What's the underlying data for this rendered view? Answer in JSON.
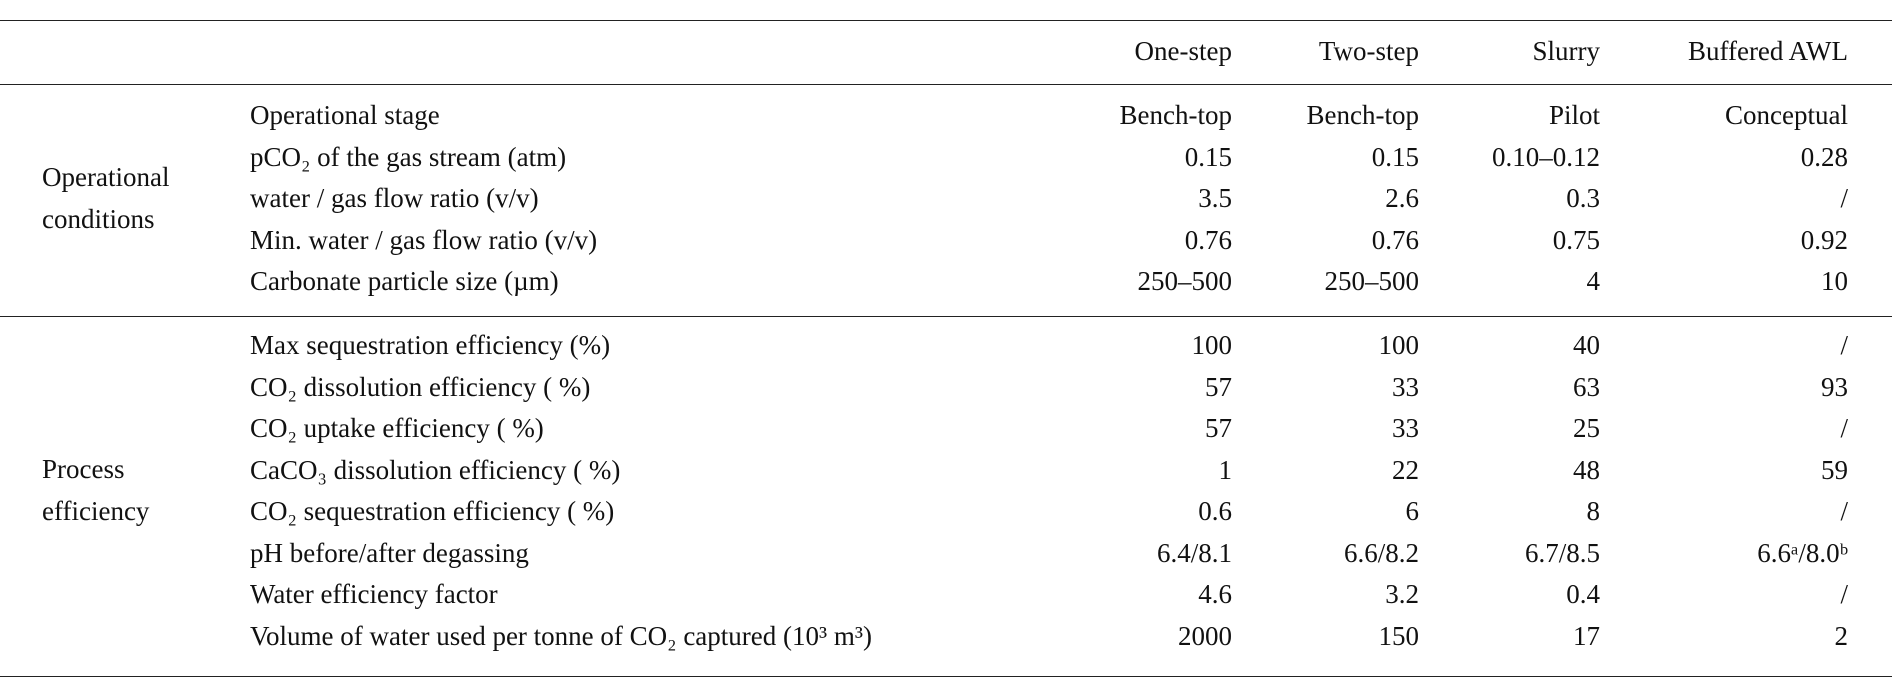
{
  "table": {
    "columns": [
      "One-step",
      "Two-step",
      "Slurry",
      "Buffered AWL"
    ],
    "groups": [
      {
        "label": "Operational conditions",
        "rows": [
          {
            "label": "Operational stage",
            "cells": [
              "Bench-top",
              "Bench-top",
              "Pilot",
              "Conceptual"
            ]
          },
          {
            "label": "pCO₂ of the gas stream (atm)",
            "cells": [
              0.15,
              0.15,
              "0.10–0.12",
              0.28
            ]
          },
          {
            "label": "water / gas flow ratio (v/v)",
            "cells": [
              3.5,
              2.6,
              0.3,
              "/"
            ]
          },
          {
            "label": "Min. water / gas flow ratio (v/v)",
            "cells": [
              0.76,
              0.76,
              0.75,
              0.92
            ]
          },
          {
            "label": "Carbonate particle size (µm)",
            "cells": [
              "250–500",
              "250–500",
              4,
              10
            ]
          }
        ]
      },
      {
        "label": "Process efficiency",
        "rows": [
          {
            "label": "Max sequestration efficiency (%)",
            "cells": [
              100,
              100,
              40,
              "/"
            ]
          },
          {
            "label": "CO₂ dissolution efficiency ( %)",
            "cells": [
              57,
              33,
              63,
              93
            ]
          },
          {
            "label": "CO₂ uptake efficiency ( %)",
            "cells": [
              57,
              33,
              25,
              "/"
            ]
          },
          {
            "label": "CaCO₃ dissolution efficiency ( %)",
            "cells": [
              1,
              22,
              48,
              59
            ]
          },
          {
            "label": "CO₂ sequestration efficiency ( %)",
            "cells": [
              0.6,
              6,
              8,
              "/"
            ]
          },
          {
            "label": "pH before/after degassing",
            "cells": [
              "6.4/8.1",
              "6.6/8.2",
              "6.7/8.5",
              "6.6ᵃ/8.0ᵇ"
            ]
          },
          {
            "label": "Water efficiency factor",
            "cells": [
              4.6,
              3.2,
              0.4,
              "/"
            ]
          },
          {
            "label": "Volume of water used per tonne of CO₂ captured (10³ m³)",
            "cells": [
              2000,
              150,
              17,
              2
            ]
          }
        ]
      }
    ]
  }
}
